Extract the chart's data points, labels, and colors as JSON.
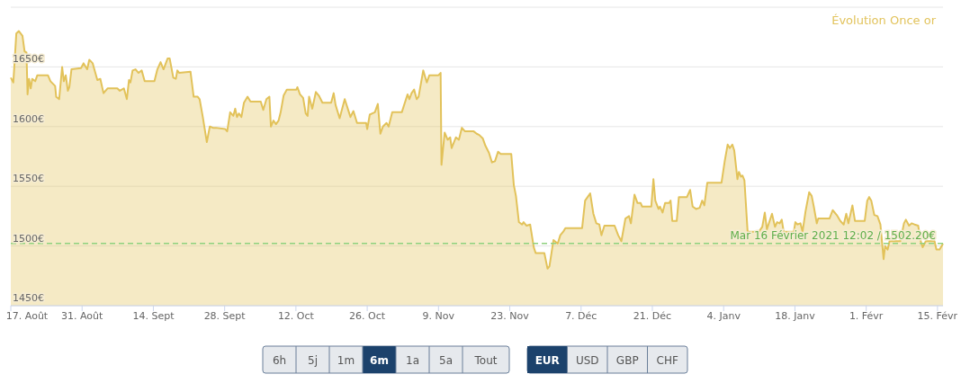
{
  "chart_data": {
    "type": "area",
    "title": "Évolution Once or",
    "grid": "y",
    "marker": "none",
    "xlim": [
      "2020-08-17",
      "2021-02-16T02:00"
    ],
    "ylim": [
      1450,
      1700
    ],
    "xticks": [
      {
        "value": "2020-08-17",
        "label": "17. Août"
      },
      {
        "value": "2020-08-31",
        "label": "31. Août"
      },
      {
        "value": "2020-09-14",
        "label": "14. Sept"
      },
      {
        "value": "2020-09-28",
        "label": "28. Sept"
      },
      {
        "value": "2020-10-12",
        "label": "12. Oct"
      },
      {
        "value": "2020-10-26",
        "label": "26. Oct"
      },
      {
        "value": "2020-11-09",
        "label": "9. Nov"
      },
      {
        "value": "2020-11-23",
        "label": "23. Nov"
      },
      {
        "value": "2020-12-07",
        "label": "7. Déc"
      },
      {
        "value": "2020-12-21",
        "label": "21. Déc"
      },
      {
        "value": "2021-01-04",
        "label": "4. Janv"
      },
      {
        "value": "2021-01-18",
        "label": "18. Janv"
      },
      {
        "value": "2021-02-01",
        "label": "1. Févr"
      },
      {
        "value": "2021-02-15",
        "label": "15. Févr"
      }
    ],
    "yticks": [
      {
        "value": 1450,
        "label": "1450€"
      },
      {
        "value": 1500,
        "label": "1500€"
      },
      {
        "value": 1550,
        "label": "1550€"
      },
      {
        "value": 1600,
        "label": "1600€"
      },
      {
        "value": 1650,
        "label": "1650€"
      },
      {
        "value": 1700,
        "label": null
      }
    ],
    "ref_lines": [
      {
        "axis": "y",
        "value": 1502.2,
        "label": "Mar 16 Février 2021 12:02 / 1502.20€",
        "color": "#8fd17f",
        "line_style": "dashed"
      }
    ],
    "annotations": [
      "6h",
      "5j",
      "1m",
      "6m",
      "1a",
      "5a",
      "Tout",
      "EUR",
      "USD",
      "GBP",
      "CHF"
    ],
    "series": [
      {
        "color": "#e2c25a",
        "x": [
          "2020-08-17T00:00",
          "2020-08-17T12:00",
          "2020-08-18T02:00",
          "2020-08-18T14:00",
          "2020-08-19T07:00",
          "2020-08-19T17:00",
          "2020-08-20T02:00",
          "2020-08-20T07:00",
          "2020-08-20T14:00",
          "2020-08-20T22:00",
          "2020-08-21T05:00",
          "2020-08-21T19:00",
          "2020-08-22T05:00",
          "2020-08-24T07:00",
          "2020-08-24T19:00",
          "2020-08-25T17:00",
          "2020-08-25T22:00",
          "2020-08-26T12:00",
          "2020-08-27T02:00",
          "2020-08-27T10:00",
          "2020-08-27T19:00",
          "2020-08-28T05:00",
          "2020-08-28T12:00",
          "2020-08-28T22:00",
          "2020-08-30T19:00",
          "2020-08-31T07:00",
          "2020-09-01T00:00",
          "2020-09-01T10:00",
          "2020-09-02T02:00",
          "2020-09-03T00:00",
          "2020-09-03T14:00",
          "2020-09-04T05:00",
          "2020-09-05T00:00",
          "2020-09-06T22:00",
          "2020-09-07T10:00",
          "2020-09-08T05:00",
          "2020-09-08T19:00",
          "2020-09-09T05:00",
          "2020-09-09T12:00",
          "2020-09-09T22:00",
          "2020-09-10T12:00",
          "2020-09-11T02:00",
          "2020-09-11T17:00",
          "2020-09-12T07:00",
          "2020-09-14T05:00",
          "2020-09-14T19:00",
          "2020-09-15T10:00",
          "2020-09-16T00:00",
          "2020-09-16T19:00",
          "2020-09-17T05:00",
          "2020-09-17T22:00",
          "2020-09-18T10:00",
          "2020-09-18T17:00",
          "2020-09-19T02:00",
          "2020-09-21T07:00",
          "2020-09-21T22:00",
          "2020-09-22T17:00",
          "2020-09-23T02:00",
          "2020-09-23T17:00",
          "2020-09-24T12:00",
          "2020-09-25T02:00",
          "2020-09-25T17:00",
          "2020-09-26T07:00",
          "2020-09-28T02:00",
          "2020-09-28T12:00",
          "2020-09-29T02:00",
          "2020-09-29T17:00",
          "2020-09-30T02:00",
          "2020-09-30T10:00",
          "2020-09-30T19:00",
          "2020-10-01T07:00",
          "2020-10-01T19:00",
          "2020-10-02T12:00",
          "2020-10-03T02:00",
          "2020-10-05T02:00",
          "2020-10-05T14:00",
          "2020-10-06T05:00",
          "2020-10-06T19:00",
          "2020-10-07T02:00",
          "2020-10-07T14:00",
          "2020-10-08T02:00",
          "2020-10-08T14:00",
          "2020-10-09T00:00",
          "2020-10-09T14:00",
          "2020-10-10T05:00",
          "2020-10-12T02:00",
          "2020-10-12T07:00",
          "2020-10-12T19:00",
          "2020-10-13T10:00",
          "2020-10-13T22:00",
          "2020-10-14T07:00",
          "2020-10-14T14:00",
          "2020-10-15T05:00",
          "2020-10-15T22:00",
          "2020-10-16T12:00",
          "2020-10-17T05:00",
          "2020-10-18T22:00",
          "2020-10-19T10:00",
          "2020-10-19T19:00",
          "2020-10-20T14:00",
          "2020-10-21T14:00",
          "2020-10-22T17:00",
          "2020-10-23T07:00",
          "2020-10-24T00:00",
          "2020-10-25T19:00",
          "2020-10-26T00:00",
          "2020-10-26T12:00",
          "2020-10-27T00:00",
          "2020-10-27T12:00",
          "2020-10-28T02:00",
          "2020-10-28T14:00",
          "2020-10-29T02:00",
          "2020-10-29T19:00",
          "2020-10-30T05:00",
          "2020-10-30T22:00",
          "2020-11-01T19:00",
          "2020-11-02T22:00",
          "2020-11-03T07:00",
          "2020-11-03T17:00",
          "2020-11-04T05:00",
          "2020-11-04T17:00",
          "2020-11-05T02:00",
          "2020-11-06T00:00",
          "2020-11-06T17:00",
          "2020-11-07T05:00",
          "2020-11-09T00:00",
          "2020-11-09T10:00",
          "2020-11-09T14:00",
          "2020-11-10T05:00",
          "2020-11-10T19:00",
          "2020-11-11T07:00",
          "2020-11-11T14:00",
          "2020-11-12T10:00",
          "2020-11-13T00:00",
          "2020-11-13T14:00",
          "2020-11-14T05:00",
          "2020-11-15T22:00",
          "2020-11-16T12:00",
          "2020-11-17T00:00",
          "2020-11-17T17:00",
          "2020-11-18T05:00",
          "2020-11-18T22:00",
          "2020-11-19T12:00",
          "2020-11-20T02:00",
          "2020-11-20T17:00",
          "2020-11-21T05:00",
          "2020-11-23T07:00",
          "2020-11-23T19:00",
          "2020-11-24T05:00",
          "2020-11-24T19:00",
          "2020-11-25T10:00",
          "2020-11-25T17:00",
          "2020-11-26T07:00",
          "2020-11-27T00:00",
          "2020-11-27T17:00",
          "2020-11-28T02:00",
          "2020-11-29T19:00",
          "2020-11-30T10:00",
          "2020-11-30T19:00",
          "2020-12-01T14:00",
          "2020-12-02T10:00",
          "2020-12-02T22:00",
          "2020-12-03T12:00",
          "2020-12-03T22:00",
          "2020-12-07T05:00",
          "2020-12-07T19:00",
          "2020-12-08T19:00",
          "2020-12-09T10:00",
          "2020-12-10T00:00",
          "2020-12-10T14:00",
          "2020-12-11T00:00",
          "2020-12-11T14:00",
          "2020-12-13T14:00",
          "2020-12-14T07:00",
          "2020-12-14T22:00",
          "2020-12-15T17:00",
          "2020-12-16T10:00",
          "2020-12-16T19:00",
          "2020-12-17T12:00",
          "2020-12-18T02:00",
          "2020-12-18T17:00",
          "2020-12-19T00:00",
          "2020-12-20T19:00",
          "2020-12-21T05:00",
          "2020-12-21T14:00",
          "2020-12-22T05:00",
          "2020-12-22T12:00",
          "2020-12-23T00:00",
          "2020-12-23T12:00",
          "2020-12-24T07:00",
          "2020-12-24T14:00",
          "2020-12-24T22:00",
          "2020-12-25T19:00",
          "2020-12-26T05:00",
          "2020-12-27T19:00",
          "2020-12-28T10:00",
          "2020-12-28T22:00",
          "2020-12-29T14:00",
          "2020-12-30T07:00",
          "2020-12-30T19:00",
          "2020-12-31T05:00",
          "2020-12-31T19:00",
          "2021-01-03T14:00",
          "2021-01-04T05:00",
          "2021-01-04T19:00",
          "2021-01-05T05:00",
          "2021-01-05T17:00",
          "2021-01-06T02:00",
          "2021-01-06T17:00",
          "2021-01-07T00:00",
          "2021-01-07T10:00",
          "2021-01-07T17:00",
          "2021-01-08T02:00",
          "2021-01-08T17:00",
          "2021-01-10T22:00",
          "2021-01-11T14:00",
          "2021-01-12T02:00",
          "2021-01-12T12:00",
          "2021-01-13T12:00",
          "2021-01-14T02:00",
          "2021-01-14T12:00",
          "2021-01-15T00:00",
          "2021-01-15T10:00",
          "2021-01-15T19:00",
          "2021-01-17T19:00",
          "2021-01-18T02:00",
          "2021-01-18T12:00",
          "2021-01-19T02:00",
          "2021-01-19T12:00",
          "2021-01-20T02:00",
          "2021-01-20T19:00",
          "2021-01-21T07:00",
          "2021-01-21T17:00",
          "2021-01-22T07:00",
          "2021-01-22T14:00",
          "2021-01-24T19:00",
          "2021-01-25T10:00",
          "2021-01-26T05:00",
          "2021-01-26T22:00",
          "2021-01-27T14:00",
          "2021-01-28T02:00",
          "2021-01-28T12:00",
          "2021-01-29T07:00",
          "2021-01-29T19:00",
          "2021-01-31T17:00",
          "2021-02-01T05:00",
          "2021-02-01T14:00",
          "2021-02-02T00:00",
          "2021-02-02T14:00",
          "2021-02-03T05:00",
          "2021-02-03T19:00",
          "2021-02-04T10:00",
          "2021-02-04T17:00",
          "2021-02-05T05:00",
          "2021-02-05T14:00",
          "2021-02-07T17:00",
          "2021-02-08T10:00",
          "2021-02-08T19:00",
          "2021-02-09T10:00",
          "2021-02-09T22:00",
          "2021-02-10T12:00",
          "2021-02-11T05:00",
          "2021-02-11T17:00",
          "2021-02-12T02:00",
          "2021-02-12T17:00",
          "2021-02-14T10:00",
          "2021-02-14T19:00",
          "2021-02-15T10:00",
          "2021-02-16T02:00"
        ],
        "values": [
          1641,
          1637,
          1678,
          1680,
          1676,
          1663,
          1662,
          1627,
          1640,
          1632,
          1640,
          1638,
          1643,
          1643,
          1638,
          1634,
          1625,
          1623,
          1650,
          1638,
          1643,
          1630,
          1633,
          1648,
          1649,
          1653,
          1648,
          1656,
          1653,
          1639,
          1640,
          1628,
          1632,
          1632,
          1630,
          1632,
          1623,
          1639,
          1637,
          1647,
          1648,
          1645,
          1647,
          1638,
          1638,
          1648,
          1654,
          1648,
          1657,
          1657,
          1641,
          1640,
          1647,
          1645,
          1646,
          1625,
          1625,
          1623,
          1608,
          1587,
          1600,
          1599,
          1599,
          1598,
          1596,
          1612,
          1609,
          1615,
          1608,
          1611,
          1608,
          1620,
          1625,
          1621,
          1621,
          1614,
          1623,
          1625,
          1600,
          1605,
          1602,
          1605,
          1612,
          1626,
          1631,
          1631,
          1633,
          1627,
          1624,
          1611,
          1609,
          1625,
          1615,
          1629,
          1626,
          1620,
          1620,
          1628,
          1618,
          1607,
          1623,
          1608,
          1613,
          1603,
          1603,
          1598,
          1610,
          1611,
          1612,
          1619,
          1594,
          1600,
          1603,
          1600,
          1612,
          1612,
          1627,
          1623,
          1628,
          1631,
          1623,
          1625,
          1647,
          1637,
          1643,
          1643,
          1645,
          1568,
          1595,
          1589,
          1591,
          1582,
          1591,
          1589,
          1599,
          1596,
          1596,
          1594,
          1593,
          1590,
          1584,
          1578,
          1570,
          1571,
          1579,
          1577,
          1577,
          1551,
          1542,
          1520,
          1518,
          1520,
          1517,
          1518,
          1499,
          1494,
          1494,
          1481,
          1483,
          1505,
          1502,
          1509,
          1512,
          1515,
          1515,
          1538,
          1544,
          1527,
          1519,
          1518,
          1509,
          1517,
          1517,
          1509,
          1504,
          1523,
          1525,
          1519,
          1543,
          1536,
          1536,
          1533,
          1533,
          1556,
          1538,
          1531,
          1533,
          1528,
          1536,
          1536,
          1538,
          1521,
          1521,
          1541,
          1541,
          1547,
          1533,
          1531,
          1532,
          1538,
          1534,
          1553,
          1553,
          1571,
          1585,
          1582,
          1585,
          1580,
          1556,
          1562,
          1558,
          1559,
          1555,
          1512,
          1512,
          1516,
          1528,
          1514,
          1527,
          1516,
          1520,
          1519,
          1522,
          1512,
          1512,
          1520,
          1518,
          1519,
          1512,
          1529,
          1545,
          1542,
          1533,
          1519,
          1523,
          1523,
          1530,
          1526,
          1521,
          1518,
          1527,
          1519,
          1534,
          1521,
          1521,
          1538,
          1541,
          1538,
          1526,
          1525,
          1518,
          1489,
          1500,
          1497,
          1504,
          1504,
          1519,
          1522,
          1517,
          1519,
          1518,
          1517,
          1504,
          1499,
          1504,
          1504,
          1497,
          1497,
          1502
        ]
      }
    ]
  }
}
